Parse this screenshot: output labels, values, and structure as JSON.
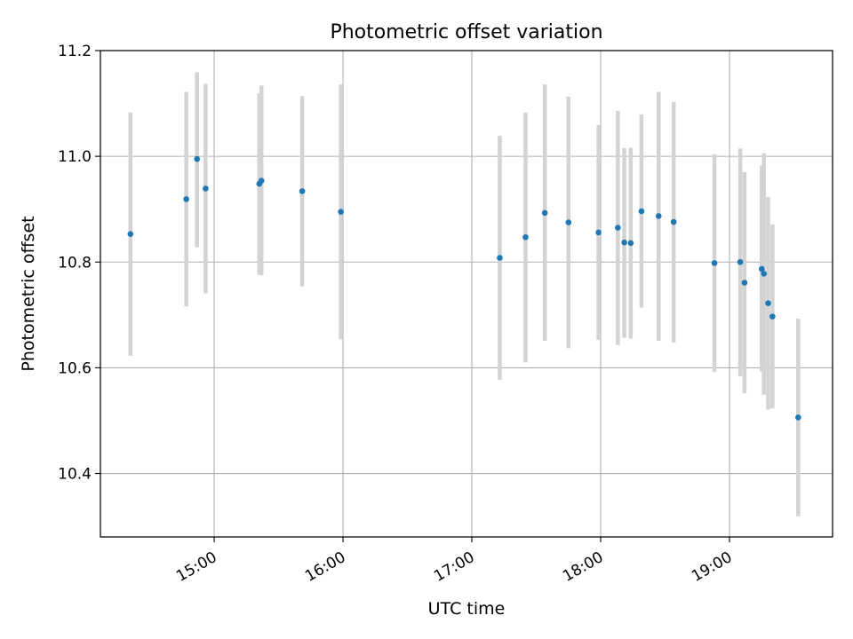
{
  "chart_data": {
    "type": "scatter",
    "title": "Photometric offset variation",
    "xlabel": "UTC time",
    "ylabel": "Photometric offset",
    "x_ticks": [
      "15:00",
      "16:00",
      "17:00",
      "18:00",
      "19:00"
    ],
    "x_tick_hours": [
      15,
      16,
      17,
      18,
      19
    ],
    "xlim": [
      "14:07",
      "19:48"
    ],
    "ylim": [
      10.28,
      11.2
    ],
    "y_ticks": [
      10.4,
      10.6,
      10.8,
      11.0,
      11.2
    ],
    "y_tick_labels": [
      "10.4",
      "10.6",
      "10.8",
      "11.0",
      "11.2"
    ],
    "grid": true,
    "colors": {
      "point": "#1f77b4",
      "errorbar": "#d3d3d3",
      "grid": "#b0b0b0"
    },
    "series": [
      {
        "points": [
          {
            "x": "14:21",
            "y": 10.853,
            "ylow": 10.623,
            "yhigh": 11.083
          },
          {
            "x": "14:47",
            "y": 10.919,
            "ylow": 10.716,
            "yhigh": 11.122
          },
          {
            "x": "14:52",
            "y": 10.995,
            "ylow": 10.828,
            "yhigh": 11.159
          },
          {
            "x": "14:56",
            "y": 10.939,
            "ylow": 10.741,
            "yhigh": 11.137
          },
          {
            "x": "15:21",
            "y": 10.948,
            "ylow": 10.776,
            "yhigh": 11.119
          },
          {
            "x": "15:22",
            "y": 10.954,
            "ylow": 10.775,
            "yhigh": 11.134
          },
          {
            "x": "15:41",
            "y": 10.934,
            "ylow": 10.754,
            "yhigh": 11.114
          },
          {
            "x": "15:59",
            "y": 10.895,
            "ylow": 10.654,
            "yhigh": 11.136
          },
          {
            "x": "17:13",
            "y": 10.808,
            "ylow": 10.577,
            "yhigh": 11.039
          },
          {
            "x": "17:25",
            "y": 10.847,
            "ylow": 10.61,
            "yhigh": 11.083
          },
          {
            "x": "17:34",
            "y": 10.893,
            "ylow": 10.651,
            "yhigh": 11.136
          },
          {
            "x": "17:45",
            "y": 10.875,
            "ylow": 10.637,
            "yhigh": 11.113
          },
          {
            "x": "17:59",
            "y": 10.856,
            "ylow": 10.653,
            "yhigh": 11.059
          },
          {
            "x": "18:08",
            "y": 10.865,
            "ylow": 10.643,
            "yhigh": 11.086
          },
          {
            "x": "18:11",
            "y": 10.837,
            "ylow": 10.657,
            "yhigh": 11.016
          },
          {
            "x": "18:14",
            "y": 10.836,
            "ylow": 10.655,
            "yhigh": 11.016
          },
          {
            "x": "18:19",
            "y": 10.896,
            "ylow": 10.714,
            "yhigh": 11.079
          },
          {
            "x": "18:27",
            "y": 10.887,
            "ylow": 10.651,
            "yhigh": 11.122
          },
          {
            "x": "18:34",
            "y": 10.876,
            "ylow": 10.648,
            "yhigh": 11.103
          },
          {
            "x": "18:53",
            "y": 10.798,
            "ylow": 10.592,
            "yhigh": 11.004
          },
          {
            "x": "19:05",
            "y": 10.8,
            "ylow": 10.584,
            "yhigh": 11.015
          },
          {
            "x": "19:07",
            "y": 10.761,
            "ylow": 10.552,
            "yhigh": 10.97
          },
          {
            "x": "19:15",
            "y": 10.787,
            "ylow": 10.593,
            "yhigh": 10.983
          },
          {
            "x": "19:16",
            "y": 10.778,
            "ylow": 10.549,
            "yhigh": 11.006
          },
          {
            "x": "19:18",
            "y": 10.722,
            "ylow": 10.521,
            "yhigh": 10.923
          },
          {
            "x": "19:20",
            "y": 10.697,
            "ylow": 10.523,
            "yhigh": 10.871
          },
          {
            "x": "19:32",
            "y": 10.506,
            "ylow": 10.319,
            "yhigh": 10.693
          }
        ]
      }
    ]
  }
}
